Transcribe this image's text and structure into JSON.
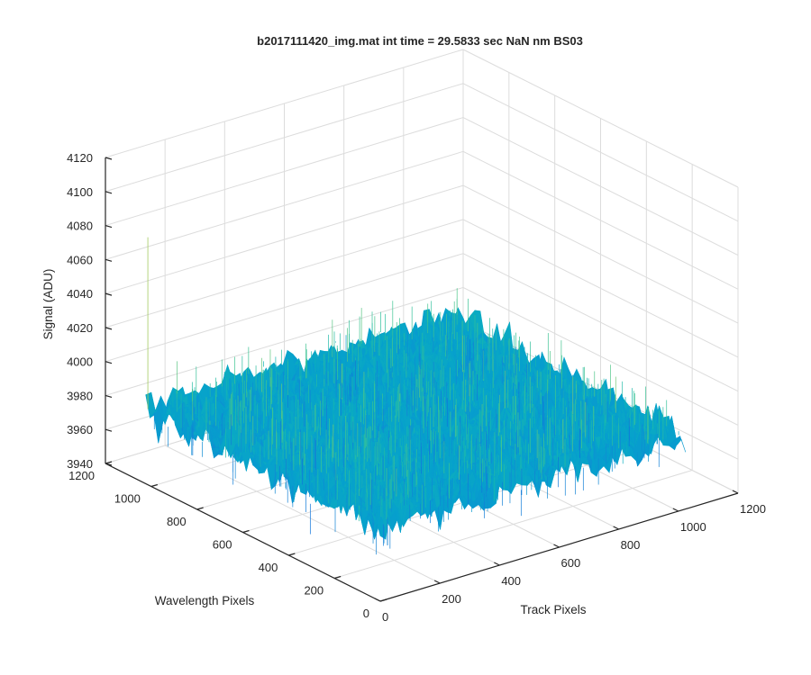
{
  "chart_data": {
    "type": "surface",
    "title": "b2017111420_img.mat int time = 29.5833 sec  NaN nm BS03",
    "xlabel": "Track Pixels",
    "ylabel": "Wavelength Pixels",
    "zlabel": "Signal (ADU)",
    "xlim": [
      0,
      1200
    ],
    "ylim": [
      0,
      1200
    ],
    "zlim": [
      3940,
      4120
    ],
    "x_ticks": [
      "0",
      "200",
      "400",
      "600",
      "800",
      "1000",
      "1200"
    ],
    "y_ticks": [
      "0",
      "200",
      "400",
      "600",
      "800",
      "1000",
      "1200"
    ],
    "z_ticks": [
      "3940",
      "3960",
      "3980",
      "4000",
      "4020",
      "4040",
      "4060",
      "4080",
      "4100",
      "4120"
    ],
    "surface_extent": {
      "x": [
        0,
        1024
      ],
      "y": [
        0,
        1024
      ]
    },
    "surface_mean": 3984,
    "surface_noise_range": [
      3965,
      4010
    ],
    "max_outlier": 4085,
    "colormap": "parula",
    "grid": true,
    "view": "3d-default"
  }
}
